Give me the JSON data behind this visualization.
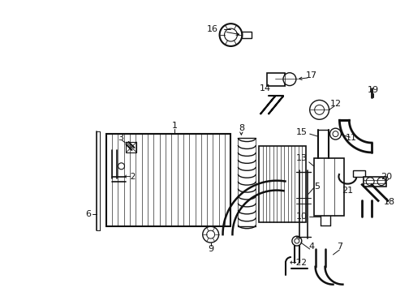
{
  "bg_color": "#ffffff",
  "line_color": "#111111",
  "fig_width": 4.89,
  "fig_height": 3.6,
  "dpi": 100
}
